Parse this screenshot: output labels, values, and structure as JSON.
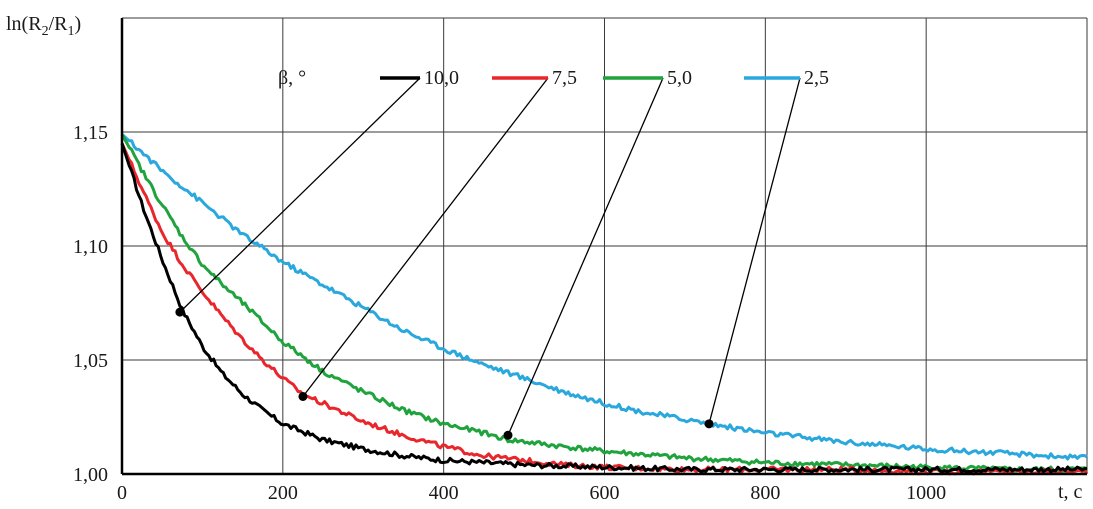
{
  "chart_data": {
    "type": "line",
    "xlabel": "t, c",
    "ylabel": "ln(R2/R1)",
    "ylabel_parts": [
      "ln(R",
      "2",
      "/R",
      "1",
      ")"
    ],
    "xlim": [
      0,
      1200
    ],
    "ylim": [
      1.0,
      1.2
    ],
    "x_ticks": [
      0,
      200,
      400,
      600,
      800,
      1000
    ],
    "x_tick_labels": [
      "0",
      "200",
      "400",
      "600",
      "800",
      "1000"
    ],
    "y_ticks": [
      1.0,
      1.05,
      1.1,
      1.15
    ],
    "y_tick_labels": [
      "1,00",
      "1,05",
      "1,10",
      "1,15"
    ],
    "grid": true,
    "legend_title": "β, °",
    "legend_placement": "top",
    "series": [
      {
        "name": "10,0",
        "color": "#000000",
        "x": [
          0,
          25,
          50,
          75,
          100,
          125,
          150,
          175,
          200,
          250,
          300,
          350,
          400,
          450,
          500,
          600,
          700,
          800,
          900,
          1000,
          1100,
          1200
        ],
        "y": [
          1.145,
          1.118,
          1.094,
          1.072,
          1.056,
          1.044,
          1.035,
          1.028,
          1.022,
          1.015,
          1.011,
          1.008,
          1.006,
          1.005,
          1.004,
          1.003,
          1.002,
          1.002,
          1.002,
          1.002,
          1.002,
          1.002
        ],
        "marker": {
          "x": 72,
          "y": 1.071
        }
      },
      {
        "name": "7,5",
        "color": "#e8262b",
        "x": [
          0,
          25,
          50,
          75,
          100,
          125,
          150,
          175,
          200,
          225,
          250,
          300,
          350,
          400,
          450,
          500,
          550,
          600,
          700,
          800,
          900,
          1000,
          1100,
          1200
        ],
        "y": [
          1.145,
          1.125,
          1.106,
          1.092,
          1.08,
          1.069,
          1.059,
          1.05,
          1.042,
          1.035,
          1.031,
          1.023,
          1.017,
          1.012,
          1.008,
          1.006,
          1.004,
          1.003,
          1.002,
          1.002,
          1.002,
          1.001,
          1.001,
          1.001
        ],
        "marker": {
          "x": 225,
          "y": 1.034
        }
      },
      {
        "name": "5,0",
        "color": "#1fa33c",
        "x": [
          0,
          25,
          50,
          75,
          100,
          125,
          150,
          200,
          250,
          300,
          350,
          400,
          450,
          480,
          550,
          600,
          700,
          800,
          900,
          1000,
          1100,
          1200
        ],
        "y": [
          1.149,
          1.133,
          1.118,
          1.104,
          1.092,
          1.083,
          1.075,
          1.058,
          1.045,
          1.036,
          1.028,
          1.022,
          1.018,
          1.015,
          1.012,
          1.01,
          1.007,
          1.005,
          1.004,
          1.003,
          1.002,
          1.002
        ],
        "marker": {
          "x": 480,
          "y": 1.017
        }
      },
      {
        "name": "2,5",
        "color": "#2aa8dd",
        "x": [
          0,
          25,
          50,
          100,
          150,
          200,
          250,
          300,
          350,
          400,
          450,
          500,
          550,
          600,
          650,
          700,
          730,
          800,
          900,
          1000,
          1100,
          1200
        ],
        "y": [
          1.149,
          1.141,
          1.133,
          1.119,
          1.105,
          1.093,
          1.083,
          1.073,
          1.063,
          1.055,
          1.048,
          1.042,
          1.036,
          1.031,
          1.027,
          1.024,
          1.022,
          1.018,
          1.014,
          1.011,
          1.009,
          1.007
        ],
        "marker": {
          "x": 730,
          "y": 1.022
        }
      }
    ]
  }
}
